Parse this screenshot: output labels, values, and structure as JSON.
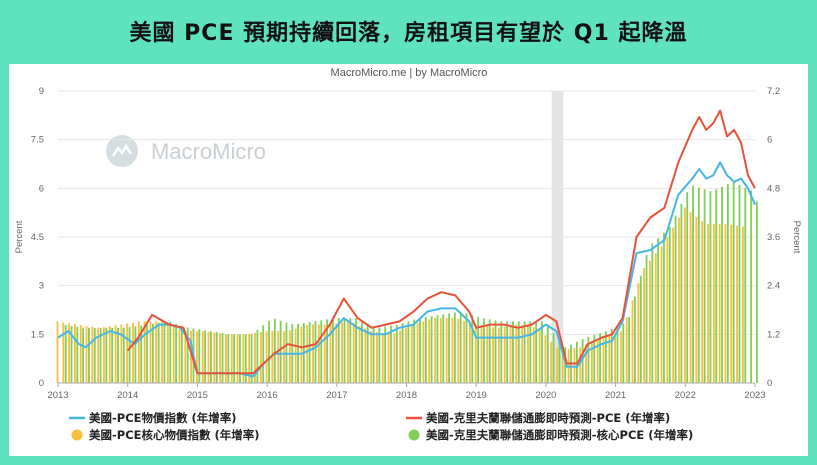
{
  "headline": "美國 PCE 預期持續回落，房租項目有望於 Q1 起降溫",
  "source": "MacroMicro.me | by MacroMicro",
  "watermark": "MacroMicro",
  "colors": {
    "pce_line": "#47b5e6",
    "nowcast_pce_line": "#e8513a",
    "core_pce_bar": "#f6bf3c",
    "nowcast_core_bar": "#7fce55",
    "recession": "#e4e4e4",
    "background": "#5fe3bf"
  },
  "chart_data": {
    "type": "line+bar",
    "x_ticks": [
      "2013",
      "2014",
      "2015",
      "2016",
      "2017",
      "2018",
      "2019",
      "2020",
      "2021",
      "2022",
      "2023"
    ],
    "y_left": {
      "label": "Percent",
      "ticks": [
        "0",
        "1.5",
        "3",
        "4.5",
        "6",
        "7.5",
        "9"
      ],
      "lim": [
        0,
        9
      ]
    },
    "y_right": {
      "label": "Percent",
      "ticks": [
        "0",
        "1.2",
        "2.4",
        "3.6",
        "4.8",
        "6",
        "7.2"
      ],
      "lim": [
        0,
        7.2
      ]
    },
    "shaded_period": [
      "2020-02",
      "2020-04"
    ],
    "legend": [
      {
        "key": "pce",
        "label": "美國-PCE物價指數 (年增率)",
        "marker": "line",
        "color": "#47b5e6"
      },
      {
        "key": "nowcast_pce",
        "label": "美國-克里夫蘭聯儲通膨即時預測-PCE (年增率)",
        "marker": "line",
        "color": "#e8513a"
      },
      {
        "key": "core_pce",
        "label": "美國-PCE核心物價指數 (年增率)",
        "marker": "dot",
        "color": "#f6bf3c"
      },
      {
        "key": "nowcast_core",
        "label": "美國-克里夫蘭聯儲通膨即時預測-核心PCE (年增率)",
        "marker": "dot",
        "color": "#7fce55"
      }
    ],
    "series": [
      {
        "key": "pce",
        "axis": "left",
        "type": "line",
        "points": [
          [
            2013.0,
            1.4
          ],
          [
            2013.15,
            1.6
          ],
          [
            2013.3,
            1.2
          ],
          [
            2013.4,
            1.1
          ],
          [
            2013.55,
            1.4
          ],
          [
            2013.75,
            1.6
          ],
          [
            2013.9,
            1.5
          ],
          [
            2014.1,
            1.2
          ],
          [
            2014.25,
            1.5
          ],
          [
            2014.45,
            1.8
          ],
          [
            2014.6,
            1.8
          ],
          [
            2014.75,
            1.7
          ],
          [
            2014.9,
            1.3
          ],
          [
            2015.0,
            0.3
          ],
          [
            2015.2,
            0.3
          ],
          [
            2015.4,
            0.3
          ],
          [
            2015.6,
            0.3
          ],
          [
            2015.8,
            0.2
          ],
          [
            2015.95,
            0.6
          ],
          [
            2016.1,
            0.9
          ],
          [
            2016.3,
            0.9
          ],
          [
            2016.5,
            0.9
          ],
          [
            2016.7,
            1.1
          ],
          [
            2016.9,
            1.5
          ],
          [
            2017.1,
            2.0
          ],
          [
            2017.3,
            1.7
          ],
          [
            2017.5,
            1.5
          ],
          [
            2017.7,
            1.5
          ],
          [
            2017.9,
            1.7
          ],
          [
            2018.1,
            1.8
          ],
          [
            2018.3,
            2.2
          ],
          [
            2018.5,
            2.3
          ],
          [
            2018.7,
            2.3
          ],
          [
            2018.9,
            1.9
          ],
          [
            2019.0,
            1.4
          ],
          [
            2019.2,
            1.4
          ],
          [
            2019.4,
            1.4
          ],
          [
            2019.6,
            1.4
          ],
          [
            2019.8,
            1.5
          ],
          [
            2020.0,
            1.8
          ],
          [
            2020.15,
            1.6
          ],
          [
            2020.3,
            0.5
          ],
          [
            2020.45,
            0.5
          ],
          [
            2020.6,
            1.0
          ],
          [
            2020.8,
            1.2
          ],
          [
            2020.95,
            1.3
          ],
          [
            2021.1,
            1.9
          ],
          [
            2021.3,
            4.0
          ],
          [
            2021.5,
            4.1
          ],
          [
            2021.7,
            4.4
          ],
          [
            2021.9,
            5.8
          ],
          [
            2022.1,
            6.3
          ],
          [
            2022.2,
            6.6
          ],
          [
            2022.3,
            6.3
          ],
          [
            2022.4,
            6.4
          ],
          [
            2022.5,
            6.8
          ],
          [
            2022.6,
            6.4
          ],
          [
            2022.7,
            6.2
          ],
          [
            2022.8,
            6.3
          ],
          [
            2022.9,
            6.0
          ],
          [
            2023.0,
            5.5
          ]
        ]
      },
      {
        "key": "nowcast_pce",
        "axis": "left",
        "type": "line",
        "points": [
          [
            2014.0,
            1.0
          ],
          [
            2014.15,
            1.4
          ],
          [
            2014.35,
            2.1
          ],
          [
            2014.6,
            1.8
          ],
          [
            2014.8,
            1.7
          ],
          [
            2015.0,
            0.3
          ],
          [
            2015.2,
            0.3
          ],
          [
            2015.4,
            0.3
          ],
          [
            2015.6,
            0.3
          ],
          [
            2015.8,
            0.3
          ],
          [
            2015.95,
            0.6
          ],
          [
            2016.1,
            0.9
          ],
          [
            2016.3,
            1.2
          ],
          [
            2016.5,
            1.1
          ],
          [
            2016.7,
            1.2
          ],
          [
            2016.9,
            1.8
          ],
          [
            2017.1,
            2.6
          ],
          [
            2017.3,
            2.0
          ],
          [
            2017.5,
            1.7
          ],
          [
            2017.7,
            1.8
          ],
          [
            2017.9,
            1.9
          ],
          [
            2018.1,
            2.2
          ],
          [
            2018.3,
            2.6
          ],
          [
            2018.5,
            2.8
          ],
          [
            2018.7,
            2.7
          ],
          [
            2018.9,
            2.2
          ],
          [
            2019.0,
            1.7
          ],
          [
            2019.2,
            1.8
          ],
          [
            2019.4,
            1.8
          ],
          [
            2019.6,
            1.7
          ],
          [
            2019.8,
            1.8
          ],
          [
            2020.0,
            2.1
          ],
          [
            2020.15,
            1.9
          ],
          [
            2020.3,
            0.6
          ],
          [
            2020.45,
            0.6
          ],
          [
            2020.6,
            1.2
          ],
          [
            2020.8,
            1.4
          ],
          [
            2020.95,
            1.5
          ],
          [
            2021.1,
            2.0
          ],
          [
            2021.3,
            4.5
          ],
          [
            2021.5,
            5.1
          ],
          [
            2021.7,
            5.4
          ],
          [
            2021.9,
            6.8
          ],
          [
            2022.1,
            7.8
          ],
          [
            2022.2,
            8.2
          ],
          [
            2022.3,
            7.8
          ],
          [
            2022.4,
            8.0
          ],
          [
            2022.5,
            8.4
          ],
          [
            2022.6,
            7.6
          ],
          [
            2022.7,
            7.8
          ],
          [
            2022.8,
            7.4
          ],
          [
            2022.9,
            6.4
          ],
          [
            2023.0,
            6.0
          ]
        ]
      },
      {
        "key": "core_pce",
        "axis": "left",
        "type": "bar",
        "points": [
          [
            2013.0,
            1.9
          ],
          [
            2013.3,
            1.8
          ],
          [
            2013.6,
            1.7
          ],
          [
            2013.9,
            1.8
          ],
          [
            2014.2,
            1.9
          ],
          [
            2014.5,
            1.9
          ],
          [
            2014.8,
            1.6
          ],
          [
            2015.1,
            1.6
          ],
          [
            2015.4,
            1.5
          ],
          [
            2015.7,
            1.5
          ],
          [
            2016.0,
            1.6
          ],
          [
            2016.3,
            1.6
          ],
          [
            2016.6,
            1.8
          ],
          [
            2016.9,
            1.8
          ],
          [
            2017.2,
            1.9
          ],
          [
            2017.5,
            1.6
          ],
          [
            2017.8,
            1.5
          ],
          [
            2018.1,
            1.8
          ],
          [
            2018.4,
            2.0
          ],
          [
            2018.7,
            2.0
          ],
          [
            2019.0,
            1.8
          ],
          [
            2019.3,
            1.7
          ],
          [
            2019.6,
            1.8
          ],
          [
            2019.9,
            1.7
          ],
          [
            2020.2,
            1.0
          ],
          [
            2020.5,
            1.1
          ],
          [
            2020.8,
            1.4
          ],
          [
            2021.1,
            1.6
          ],
          [
            2021.4,
            3.5
          ],
          [
            2021.7,
            4.3
          ],
          [
            2022.0,
            5.4
          ],
          [
            2022.3,
            4.9
          ],
          [
            2022.6,
            4.9
          ],
          [
            2022.9,
            4.8
          ]
        ]
      },
      {
        "key": "nowcast_core",
        "axis": "left",
        "type": "bar",
        "points": [
          [
            2013.05,
            1.8
          ],
          [
            2013.35,
            1.7
          ],
          [
            2013.65,
            1.7
          ],
          [
            2013.95,
            1.7
          ],
          [
            2014.25,
            1.8
          ],
          [
            2014.55,
            1.9
          ],
          [
            2014.85,
            1.7
          ],
          [
            2015.15,
            1.6
          ],
          [
            2015.45,
            1.5
          ],
          [
            2015.75,
            1.5
          ],
          [
            2016.05,
            2.0
          ],
          [
            2016.35,
            1.8
          ],
          [
            2016.65,
            1.9
          ],
          [
            2016.95,
            2.0
          ],
          [
            2017.25,
            2.0
          ],
          [
            2017.55,
            1.7
          ],
          [
            2017.85,
            1.8
          ],
          [
            2018.15,
            2.0
          ],
          [
            2018.45,
            2.1
          ],
          [
            2018.75,
            2.2
          ],
          [
            2019.05,
            2.0
          ],
          [
            2019.35,
            1.9
          ],
          [
            2019.65,
            1.9
          ],
          [
            2019.95,
            1.9
          ],
          [
            2020.25,
            1.1
          ],
          [
            2020.55,
            1.4
          ],
          [
            2020.85,
            1.6
          ],
          [
            2021.15,
            1.9
          ],
          [
            2021.45,
            4.2
          ],
          [
            2021.75,
            4.8
          ],
          [
            2022.05,
            6.1
          ],
          [
            2022.35,
            5.9
          ],
          [
            2022.65,
            6.2
          ],
          [
            2022.95,
            5.9
          ],
          [
            2023.05,
            5.3
          ]
        ]
      }
    ]
  }
}
